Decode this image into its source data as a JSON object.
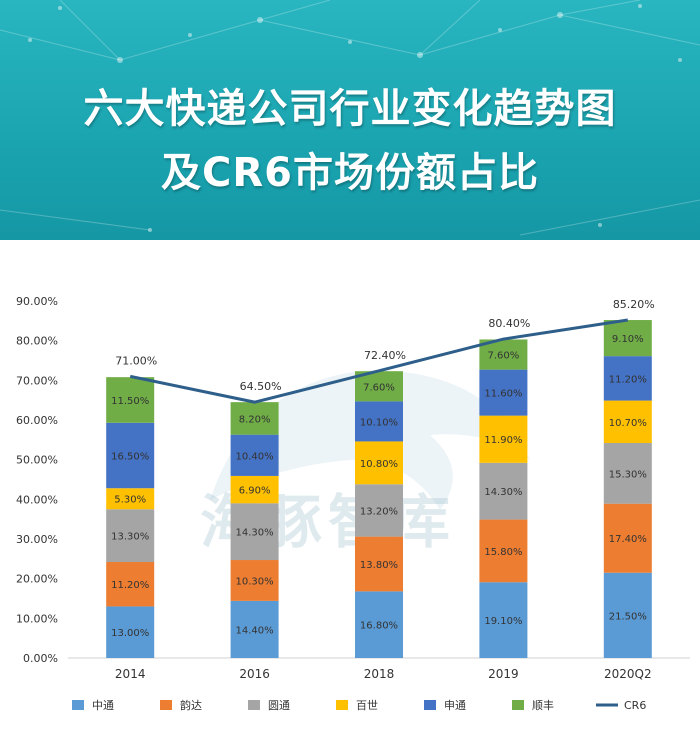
{
  "header": {
    "title_line1": "六大快递公司行业变化趋势图",
    "title_line2": "及CR6市场份额占比"
  },
  "watermark": {
    "text": "海豚智库"
  },
  "chart_data": {
    "type": "bar",
    "stacked": true,
    "categories": [
      "2014",
      "2016",
      "2018",
      "2019",
      "2020Q2"
    ],
    "series": [
      {
        "name": "中通",
        "color": "#5b9bd5",
        "values": [
          13.0,
          14.4,
          16.8,
          19.1,
          21.5
        ],
        "labels": [
          "13.00%",
          "14.40%",
          "16.80%",
          "19.10%",
          "21.50%"
        ]
      },
      {
        "name": "韵达",
        "color": "#ed7d31",
        "values": [
          11.2,
          10.3,
          13.8,
          15.8,
          17.4
        ],
        "labels": [
          "11.20%",
          "10.30%",
          "13.80%",
          "15.80%",
          "17.40%"
        ]
      },
      {
        "name": "圆通",
        "color": "#a5a5a5",
        "values": [
          13.3,
          14.3,
          13.2,
          14.3,
          15.3
        ],
        "labels": [
          "13.30%",
          "14.30%",
          "13.20%",
          "14.30%",
          "15.30%"
        ]
      },
      {
        "name": "百世",
        "color": "#ffc000",
        "values": [
          5.3,
          6.9,
          10.8,
          11.9,
          10.7
        ],
        "labels": [
          "5.30%",
          "6.90%",
          "10.80%",
          "11.90%",
          "10.70%"
        ]
      },
      {
        "name": "申通",
        "color": "#4472c4",
        "values": [
          16.5,
          10.4,
          10.1,
          11.6,
          11.2
        ],
        "labels": [
          "16.50%",
          "10.40%",
          "10.10%",
          "11.60%",
          "11.20%"
        ]
      },
      {
        "name": "顺丰",
        "color": "#70ad47",
        "values": [
          11.5,
          8.2,
          7.6,
          7.6,
          9.1
        ],
        "labels": [
          "11.50%",
          "8.20%",
          "7.60%",
          "7.60%",
          "9.10%"
        ]
      }
    ],
    "line_series": {
      "name": "CR6",
      "color": "#2e5f8a",
      "values": [
        71.0,
        64.5,
        72.4,
        80.4,
        85.2
      ],
      "labels": [
        "71.00%",
        "64.50%",
        "72.40%",
        "80.40%",
        "85.20%"
      ]
    },
    "ylim": [
      0,
      90
    ],
    "yticks": [
      "0.00%",
      "10.00%",
      "20.00%",
      "30.00%",
      "40.00%",
      "50.00%",
      "60.00%",
      "70.00%",
      "80.00%",
      "90.00%"
    ],
    "grid": false,
    "legend_position": "bottom"
  }
}
